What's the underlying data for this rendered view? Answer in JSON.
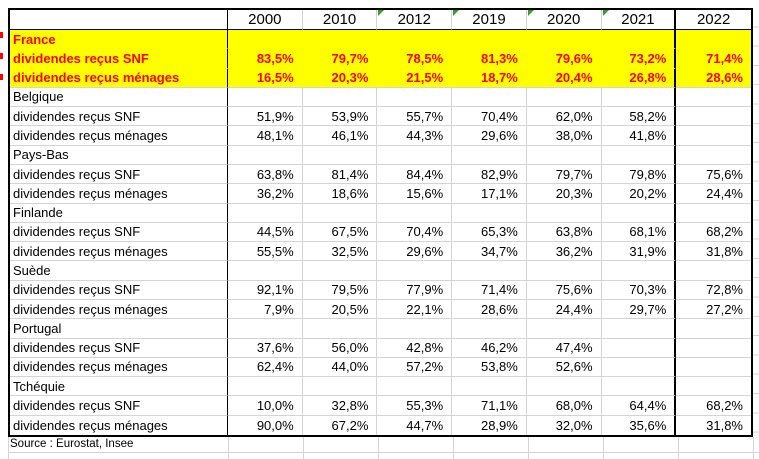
{
  "table": {
    "header": {
      "blank": "",
      "years": [
        "2000",
        "2010",
        "2012",
        "2019",
        "2020",
        "2021",
        "2022"
      ],
      "error_marker_years": [
        "2012",
        "2019",
        "2020",
        "2021"
      ]
    },
    "row_labels": {
      "snf": "dividendes reçus SNF",
      "menages": "dividendes reçus ménages"
    },
    "countries": [
      {
        "name": "France",
        "highlight": true,
        "snf": [
          "83,5%",
          "79,7%",
          "78,5%",
          "81,3%",
          "79,6%",
          "73,2%",
          "71,4%"
        ],
        "menages": [
          "16,5%",
          "20,3%",
          "21,5%",
          "18,7%",
          "20,4%",
          "26,8%",
          "28,6%"
        ]
      },
      {
        "name": "Belgique",
        "highlight": false,
        "snf": [
          "51,9%",
          "53,9%",
          "55,7%",
          "70,4%",
          "62,0%",
          "58,2%",
          ""
        ],
        "menages": [
          "48,1%",
          "46,1%",
          "44,3%",
          "29,6%",
          "38,0%",
          "41,8%",
          ""
        ]
      },
      {
        "name": "Pays-Bas",
        "highlight": false,
        "snf": [
          "63,8%",
          "81,4%",
          "84,4%",
          "82,9%",
          "79,7%",
          "79,8%",
          "75,6%"
        ],
        "menages": [
          "36,2%",
          "18,6%",
          "15,6%",
          "17,1%",
          "20,3%",
          "20,2%",
          "24,4%"
        ]
      },
      {
        "name": "Finlande",
        "highlight": false,
        "snf": [
          "44,5%",
          "67,5%",
          "70,4%",
          "65,3%",
          "63,8%",
          "68,1%",
          "68,2%"
        ],
        "menages": [
          "55,5%",
          "32,5%",
          "29,6%",
          "34,7%",
          "36,2%",
          "31,9%",
          "31,8%"
        ]
      },
      {
        "name": "Suède",
        "highlight": false,
        "snf": [
          "92,1%",
          "79,5%",
          "77,9%",
          "71,4%",
          "75,6%",
          "70,3%",
          "72,8%"
        ],
        "menages": [
          "7,9%",
          "20,5%",
          "22,1%",
          "28,6%",
          "24,4%",
          "29,7%",
          "27,2%"
        ]
      },
      {
        "name": "Portugal",
        "highlight": false,
        "snf": [
          "37,6%",
          "56,0%",
          "42,8%",
          "46,2%",
          "47,4%",
          "",
          ""
        ],
        "menages": [
          "62,4%",
          "44,0%",
          "57,2%",
          "53,8%",
          "52,6%",
          "",
          ""
        ]
      },
      {
        "name": "Tchéquie",
        "highlight": false,
        "snf": [
          "10,0%",
          "32,8%",
          "55,3%",
          "71,1%",
          "68,0%",
          "64,4%",
          "68,2%"
        ],
        "menages": [
          "90,0%",
          "67,2%",
          "44,7%",
          "28,9%",
          "32,0%",
          "35,6%",
          "31,8%"
        ]
      }
    ]
  },
  "source": "Source : Eurostat, Insee",
  "colors": {
    "highlight_bg": "#ffff00",
    "highlight_text": "#ff0000",
    "grid_line": "#d4d4d4",
    "border": "#000000",
    "error_marker_green": "#33a02c",
    "left_tick_red": "#ff0000"
  }
}
